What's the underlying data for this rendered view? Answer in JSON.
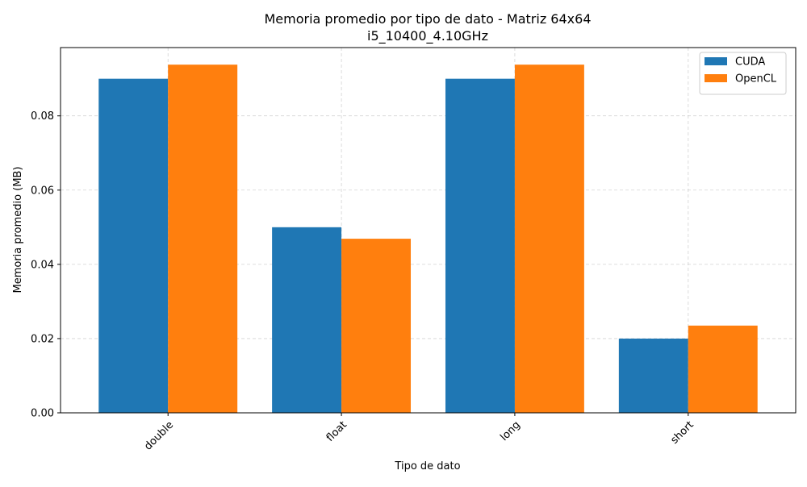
{
  "chart_data": {
    "type": "bar",
    "title": "Memoria promedio por tipo de dato - Matriz 64x64",
    "subtitle": "i5_10400_4.10GHz",
    "xlabel": "Tipo de dato",
    "ylabel": "Memoria promedio (MB)",
    "categories": [
      "double",
      "float",
      "long",
      "short"
    ],
    "series": [
      {
        "name": "CUDA",
        "color": "#1f77b4",
        "values": [
          0.09,
          0.05,
          0.09,
          0.02
        ]
      },
      {
        "name": "OpenCL",
        "color": "#ff7f0e",
        "values": [
          0.0938,
          0.0469,
          0.0938,
          0.0235
        ]
      }
    ],
    "ylim": [
      0,
      0.0984
    ],
    "yticks": [
      0.0,
      0.02,
      0.04,
      0.06,
      0.08
    ],
    "ytick_labels": [
      "0.00",
      "0.02",
      "0.04",
      "0.06",
      "0.08"
    ],
    "grid": true,
    "legend_position": "top-right",
    "x_tick_rotation_deg": 45
  }
}
